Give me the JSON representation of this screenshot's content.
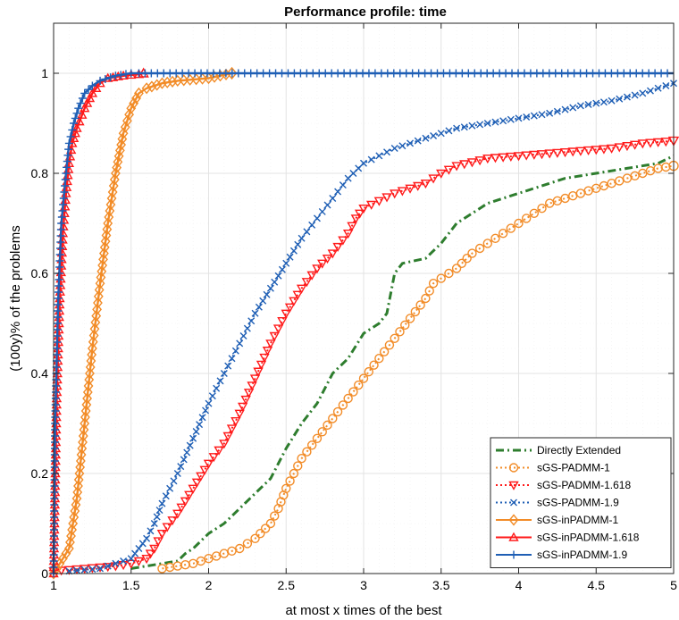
{
  "chart_data": {
    "type": "line",
    "title": "Performance profile: time",
    "xlabel": "at most x times of the best",
    "ylabel": "(100y)% of the problems",
    "xlim": [
      1,
      5
    ],
    "ylim": [
      0,
      1.1
    ],
    "xticks": [
      1,
      1.5,
      2,
      2.5,
      3,
      3.5,
      4,
      4.5,
      5
    ],
    "xtick_labels": [
      "1",
      "1.5",
      "2",
      "2.5",
      "3",
      "3.5",
      "4",
      "4.5",
      "5"
    ],
    "yticks": [
      0,
      0.2,
      0.4,
      0.6,
      0.8,
      1
    ],
    "ytick_labels": [
      "0",
      "0.2",
      "0.4",
      "0.6",
      "0.8",
      "1"
    ],
    "grid": true,
    "legend_position": "bottom-right",
    "series": [
      {
        "name": "Directly Extended",
        "color": "#2e7d2e",
        "style": "dashdot",
        "marker": "none",
        "x": [
          1.5,
          1.6,
          1.7,
          1.8,
          1.85,
          1.9,
          2.0,
          2.1,
          2.2,
          2.3,
          2.4,
          2.5,
          2.6,
          2.7,
          2.75,
          2.8,
          2.9,
          3.0,
          3.1,
          3.15,
          3.2,
          3.25,
          3.4,
          3.5,
          3.6,
          3.7,
          3.8,
          3.9,
          4.0,
          4.1,
          4.2,
          4.3,
          4.5,
          4.7,
          4.9,
          5.0
        ],
        "y": [
          0.01,
          0.015,
          0.02,
          0.025,
          0.04,
          0.05,
          0.08,
          0.1,
          0.13,
          0.16,
          0.19,
          0.25,
          0.3,
          0.34,
          0.37,
          0.4,
          0.43,
          0.48,
          0.5,
          0.52,
          0.6,
          0.62,
          0.63,
          0.66,
          0.7,
          0.72,
          0.74,
          0.75,
          0.76,
          0.77,
          0.78,
          0.79,
          0.8,
          0.81,
          0.82,
          0.835
        ]
      },
      {
        "name": "sGS-PADMM-1",
        "color": "#f28c28",
        "style": "dotted",
        "marker": "circle",
        "x": [
          1.7,
          1.8,
          1.9,
          2.0,
          2.1,
          2.2,
          2.3,
          2.4,
          2.45,
          2.5,
          2.55,
          2.6,
          2.7,
          2.8,
          2.9,
          3.0,
          3.1,
          3.2,
          3.3,
          3.4,
          3.45,
          3.5,
          3.6,
          3.7,
          3.8,
          3.9,
          4.0,
          4.1,
          4.2,
          4.3,
          4.4,
          4.5,
          4.6,
          4.7,
          4.8,
          4.9,
          5.0
        ],
        "y": [
          0.01,
          0.015,
          0.02,
          0.03,
          0.04,
          0.05,
          0.07,
          0.1,
          0.13,
          0.17,
          0.2,
          0.23,
          0.27,
          0.31,
          0.35,
          0.39,
          0.43,
          0.47,
          0.51,
          0.55,
          0.58,
          0.59,
          0.61,
          0.64,
          0.66,
          0.68,
          0.7,
          0.72,
          0.74,
          0.75,
          0.76,
          0.77,
          0.78,
          0.79,
          0.8,
          0.81,
          0.815
        ]
      },
      {
        "name": "sGS-PADMM-1.618",
        "color": "#ff1a1a",
        "style": "dotted",
        "marker": "triangle-down",
        "x": [
          1.0,
          1.2,
          1.4,
          1.5,
          1.55,
          1.6,
          1.65,
          1.7,
          1.8,
          1.9,
          2.0,
          2.1,
          2.2,
          2.3,
          2.4,
          2.5,
          2.6,
          2.7,
          2.8,
          2.9,
          2.95,
          3.0,
          3.2,
          3.4,
          3.5,
          3.6,
          3.8,
          4.0,
          4.2,
          4.4,
          4.6,
          4.8,
          5.0
        ],
        "y": [
          0.005,
          0.01,
          0.015,
          0.02,
          0.025,
          0.03,
          0.05,
          0.08,
          0.12,
          0.17,
          0.22,
          0.26,
          0.32,
          0.39,
          0.46,
          0.52,
          0.57,
          0.61,
          0.64,
          0.68,
          0.71,
          0.73,
          0.76,
          0.78,
          0.8,
          0.815,
          0.83,
          0.835,
          0.84,
          0.845,
          0.85,
          0.86,
          0.865
        ]
      },
      {
        "name": "sGS-PADMM-1.9",
        "color": "#1f5fb5",
        "style": "dotted",
        "marker": "x",
        "x": [
          1.1,
          1.3,
          1.4,
          1.5,
          1.55,
          1.6,
          1.65,
          1.7,
          1.8,
          1.9,
          2.0,
          2.1,
          2.2,
          2.3,
          2.4,
          2.5,
          2.6,
          2.7,
          2.8,
          2.9,
          3.0,
          3.2,
          3.4,
          3.5,
          3.6,
          3.8,
          4.0,
          4.2,
          4.4,
          4.6,
          4.8,
          4.9,
          5.0
        ],
        "y": [
          0.005,
          0.01,
          0.02,
          0.03,
          0.05,
          0.07,
          0.1,
          0.14,
          0.2,
          0.27,
          0.34,
          0.4,
          0.46,
          0.52,
          0.57,
          0.62,
          0.67,
          0.71,
          0.75,
          0.79,
          0.82,
          0.85,
          0.87,
          0.88,
          0.89,
          0.9,
          0.91,
          0.92,
          0.935,
          0.945,
          0.96,
          0.97,
          0.98
        ]
      },
      {
        "name": "sGS-inPADMM-1",
        "color": "#f28c28",
        "style": "solid",
        "marker": "diamond",
        "x": [
          1.0,
          1.1,
          1.15,
          1.2,
          1.25,
          1.3,
          1.35,
          1.4,
          1.45,
          1.5,
          1.55,
          1.6,
          1.7,
          1.8,
          2.0,
          2.15
        ],
        "y": [
          0.0,
          0.05,
          0.15,
          0.3,
          0.45,
          0.58,
          0.7,
          0.8,
          0.88,
          0.93,
          0.96,
          0.97,
          0.98,
          0.985,
          0.99,
          1.0
        ]
      },
      {
        "name": "sGS-inPADMM-1.618",
        "color": "#ff1a1a",
        "style": "solid",
        "marker": "triangle-up",
        "x": [
          1.0,
          1.02,
          1.04,
          1.06,
          1.08,
          1.1,
          1.12,
          1.15,
          1.2,
          1.25,
          1.3,
          1.35,
          1.45,
          1.55,
          1.58
        ],
        "y": [
          0.0,
          0.35,
          0.55,
          0.68,
          0.76,
          0.82,
          0.86,
          0.89,
          0.93,
          0.96,
          0.98,
          0.99,
          0.995,
          0.998,
          1.0
        ]
      },
      {
        "name": "sGS-inPADMM-1.9",
        "color": "#1f5fb5",
        "style": "solid",
        "marker": "plus",
        "x": [
          1.0,
          1.01,
          1.03,
          1.05,
          1.08,
          1.1,
          1.13,
          1.16,
          1.2,
          1.25,
          1.3,
          1.4,
          1.5,
          1.55,
          5.0
        ],
        "y": [
          0.0,
          0.3,
          0.55,
          0.7,
          0.8,
          0.86,
          0.9,
          0.93,
          0.96,
          0.975,
          0.985,
          0.995,
          1.0,
          1.0,
          1.0
        ]
      }
    ]
  }
}
